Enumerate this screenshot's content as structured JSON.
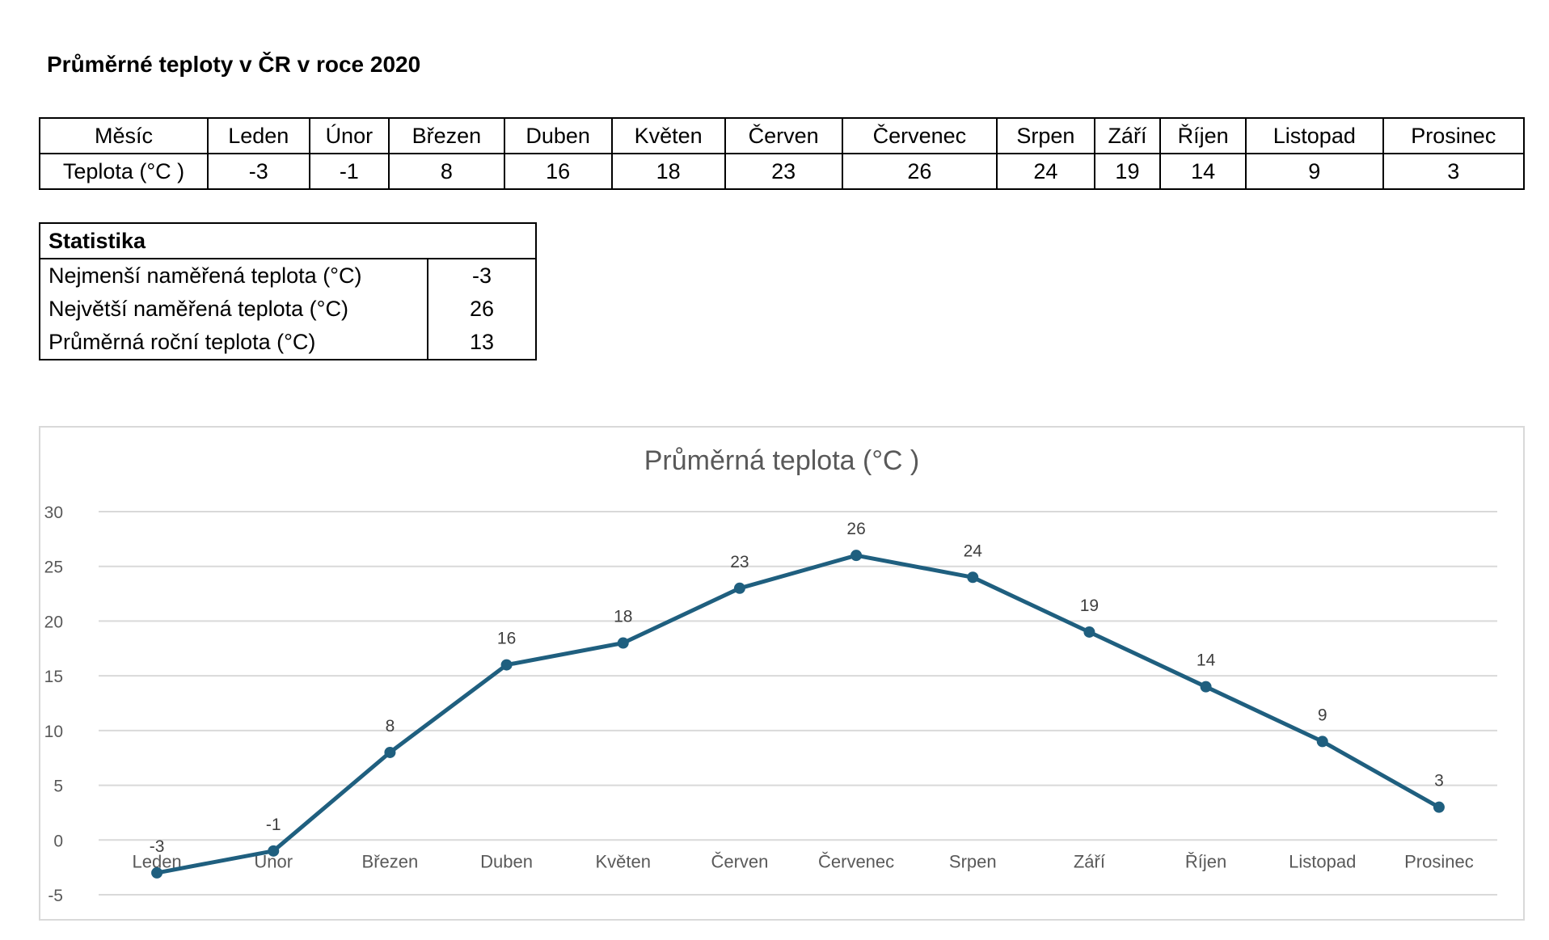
{
  "page": {
    "title": "Průměrné teploty v ČR v roce 2020"
  },
  "month_table": {
    "row_headers": [
      "Měsíc",
      "Teplota (°C )"
    ],
    "months": [
      "Leden",
      "Únor",
      "Březen",
      "Duben",
      "Květen",
      "Červen",
      "Červenec",
      "Srpen",
      "Září",
      "Říjen",
      "Listopad",
      "Prosinec"
    ],
    "temps": [
      "-3",
      "-1",
      "8",
      "16",
      "18",
      "23",
      "26",
      "24",
      "19",
      "14",
      "9",
      "3"
    ]
  },
  "stats": {
    "header": "Statistika",
    "rows": [
      {
        "label": "Nejmenší naměřená teplota (°C)",
        "value": "-3"
      },
      {
        "label": "Největší naměřená teplota (°C)",
        "value": "26"
      },
      {
        "label": "Průměrná roční teplota (°C)",
        "value": "13"
      }
    ]
  },
  "colors": {
    "series": "#1f5f7f",
    "grid": "#d9d9d9",
    "text": "#595959"
  },
  "chart_data": {
    "type": "line",
    "title": "Průměrná teplota (°C )",
    "categories": [
      "Leden",
      "Únor",
      "Březen",
      "Duben",
      "Květen",
      "Červen",
      "Červenec",
      "Srpen",
      "Září",
      "Říjen",
      "Listopad",
      "Prosinec"
    ],
    "values": [
      -3,
      -1,
      8,
      16,
      18,
      23,
      26,
      24,
      19,
      14,
      9,
      3
    ],
    "ylim": [
      -5,
      30
    ],
    "yticks": [
      "30",
      "25",
      "20",
      "15",
      "10",
      "5",
      "0",
      "-5"
    ],
    "data_labels": [
      "-3",
      "-1",
      "8",
      "16",
      "18",
      "23",
      "26",
      "24",
      "19",
      "14",
      "9",
      "3"
    ],
    "grid": true,
    "legend": "none",
    "xlabel": "",
    "ylabel": ""
  }
}
